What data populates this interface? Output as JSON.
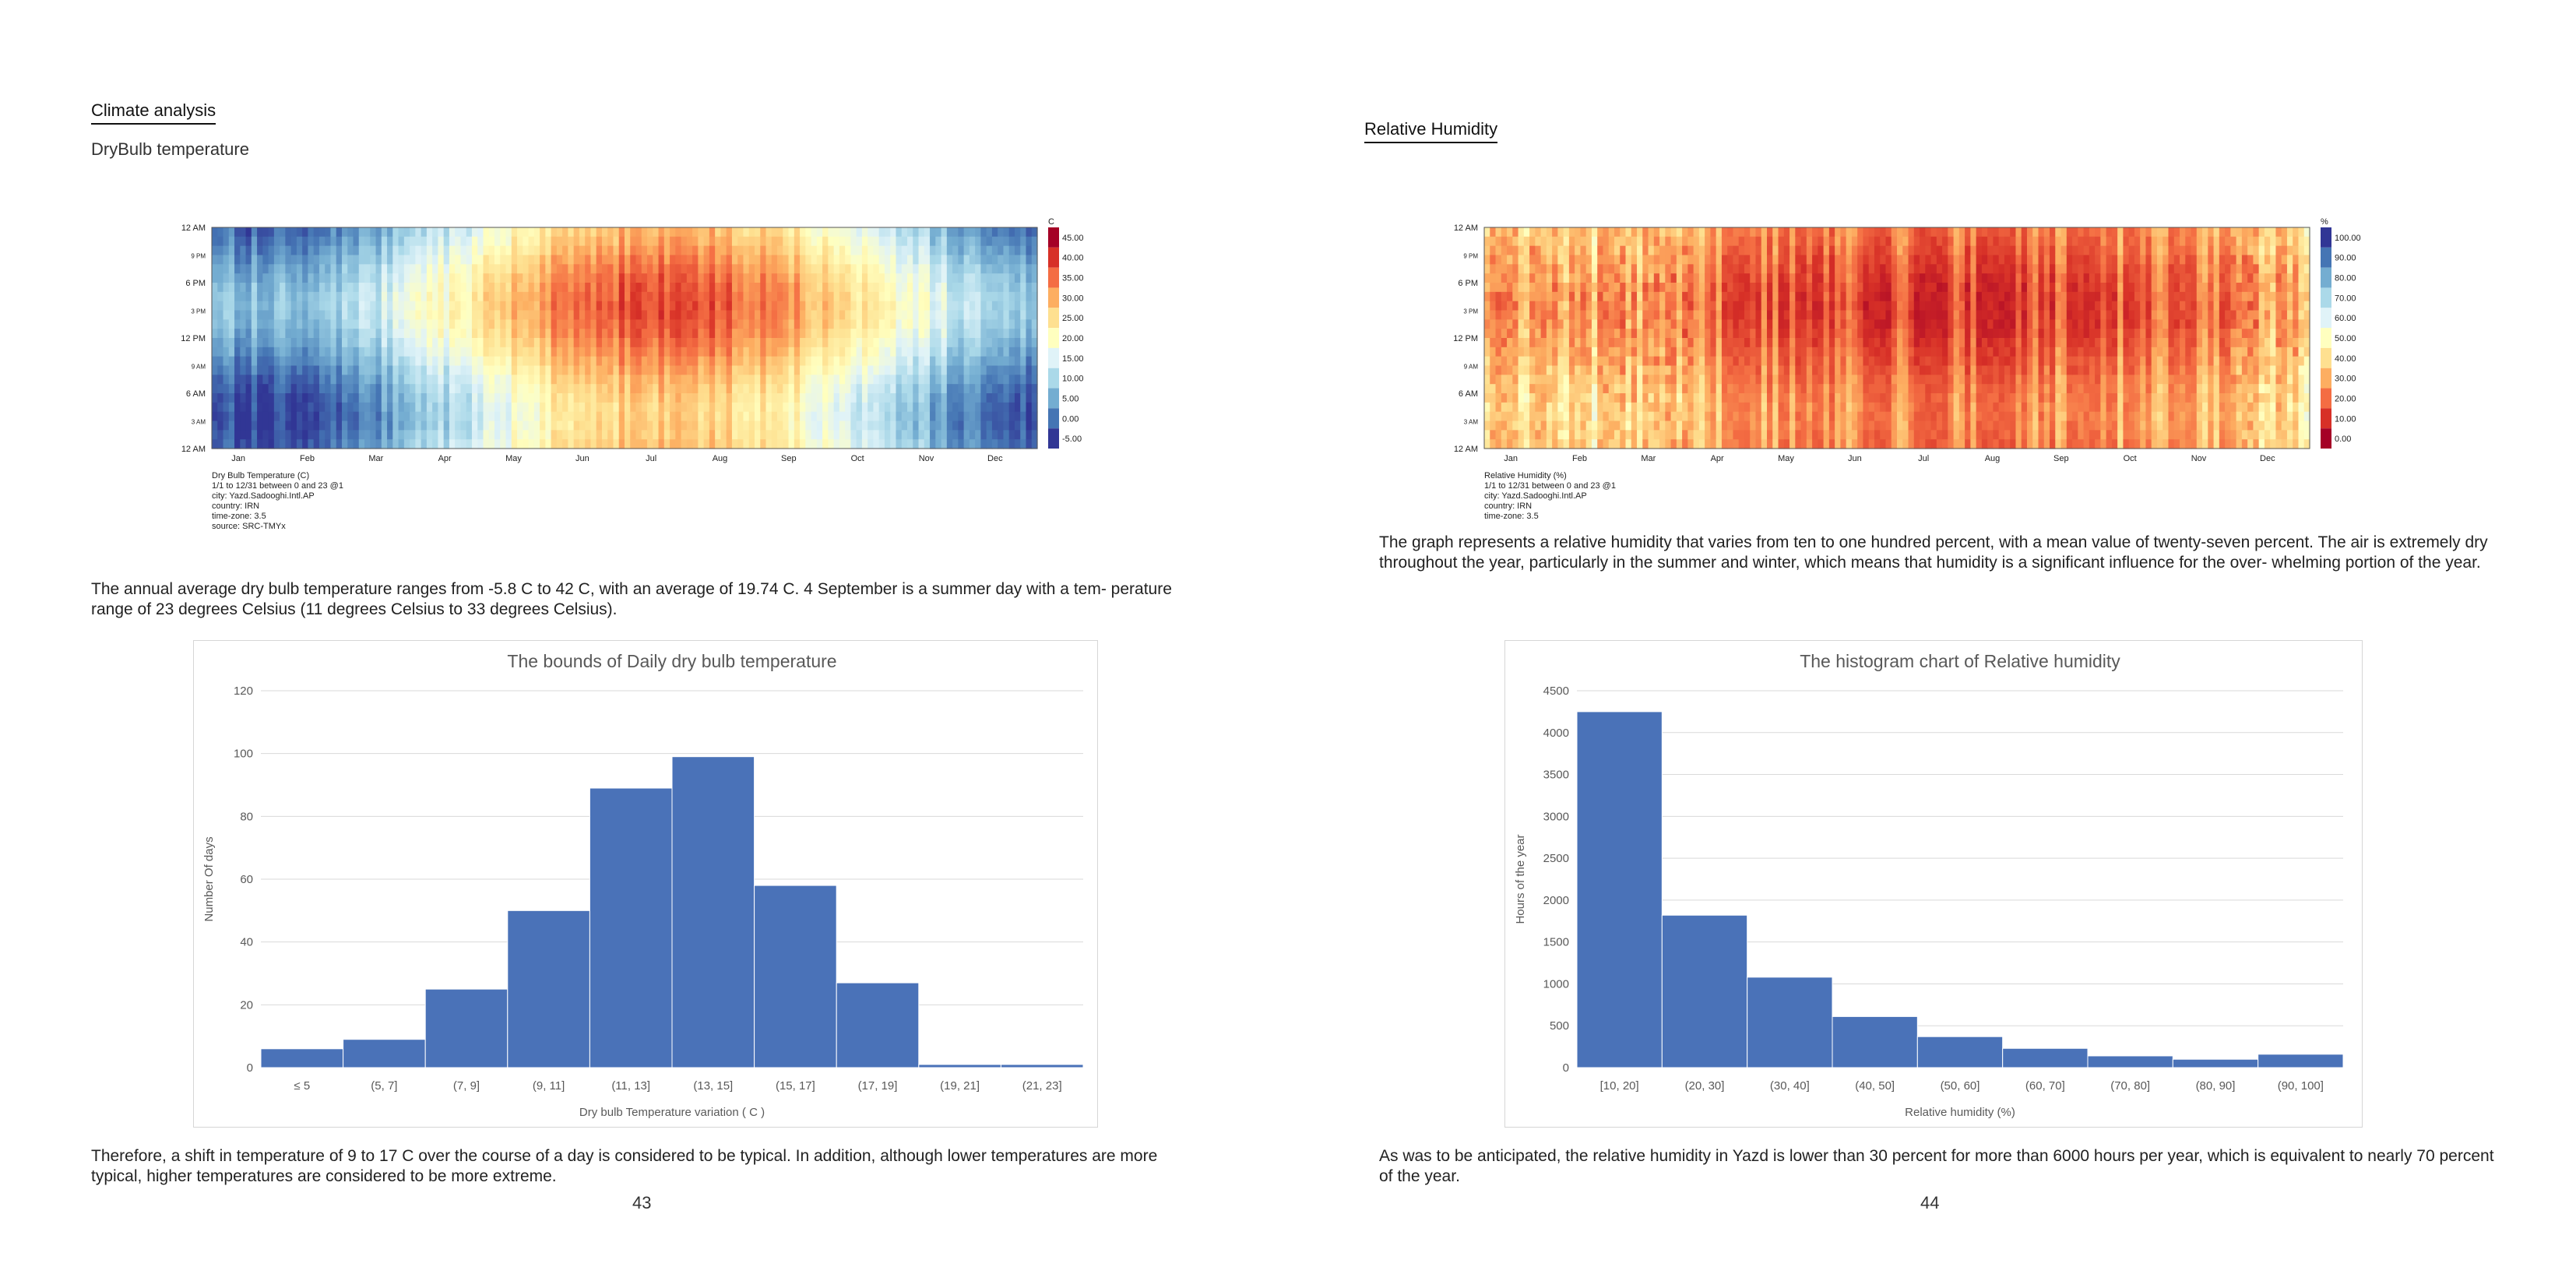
{
  "left_page": {
    "heading": "Climate analysis",
    "subheading": "DryBulb temperature",
    "paragraph1": "The annual average dry bulb temperature ranges from -5.8 C to 42 C, with an average of 19.74 C. 4 September is a summer day with a tem- perature range of 23 degrees Celsius (11 degrees Celsius to 33 degrees Celsius).",
    "paragraph2": "Therefore, a shift in temperature of 9 to 17 C over the course of a day is considered to be typical. In addition, although lower temperatures are more typical, higher temperatures are considered to be more extreme.",
    "page_number": "43"
  },
  "right_page": {
    "heading": "Relative Humidity",
    "paragraph1": "The graph represents a relative humidity that varies from ten to one hundred percent, with a mean value of twenty-seven percent. The air is extremely dry throughout the year, particularly in the summer and winter, which means that humidity is a significant influence for the over- whelming portion of the year.",
    "paragraph2": "As was to be anticipated, the relative humidity in Yazd is lower than 30 percent for more than 6000 hours per year, which is equivalent to nearly 70 percent of the year.",
    "page_number": "44"
  },
  "chart_data": [
    {
      "id": "drybulb-heatmap",
      "type": "heatmap",
      "y_ticks": [
        "12 AM",
        "9 PM",
        "6 PM",
        "3 PM",
        "12 PM",
        "9 AM",
        "6 AM",
        "3 AM",
        "12 AM"
      ],
      "x_ticks": [
        "Jan",
        "Feb",
        "Mar",
        "Apr",
        "May",
        "Jun",
        "Jul",
        "Aug",
        "Sep",
        "Oct",
        "Nov",
        "Dec"
      ],
      "legend_unit": "C",
      "legend_values": [
        "45.00",
        "40.00",
        "35.00",
        "30.00",
        "25.00",
        "20.00",
        "15.00",
        "10.00",
        "5.00",
        "0.00",
        "-5.00"
      ],
      "legend_colors": [
        "#a50026",
        "#d73027",
        "#f46d43",
        "#fdae61",
        "#fee090",
        "#ffffbf",
        "#e0f3f8",
        "#abd9e9",
        "#74add1",
        "#4575b4",
        "#313695"
      ],
      "caption": [
        "Dry Bulb Temperature (C)",
        "1/1 to 12/31 between 0 and 23 @1",
        "city: Yazd.Sadooghi.Intl.AP",
        "country: IRN",
        "time-zone: 3.5",
        "source: SRC-TMYx"
      ]
    },
    {
      "id": "humidity-heatmap",
      "type": "heatmap",
      "y_ticks": [
        "12 AM",
        "9 PM",
        "6 PM",
        "3 PM",
        "12 PM",
        "9 AM",
        "6 AM",
        "3 AM",
        "12 AM"
      ],
      "x_ticks": [
        "Jan",
        "Feb",
        "Mar",
        "Apr",
        "May",
        "Jun",
        "Jul",
        "Aug",
        "Sep",
        "Oct",
        "Nov",
        "Dec"
      ],
      "legend_unit": "%",
      "legend_values": [
        "100.00",
        "90.00",
        "80.00",
        "70.00",
        "60.00",
        "50.00",
        "40.00",
        "30.00",
        "20.00",
        "10.00",
        "0.00"
      ],
      "legend_colors": [
        "#313695",
        "#4575b4",
        "#74add1",
        "#abd9e9",
        "#e0f3f8",
        "#ffffbf",
        "#fee090",
        "#fdae61",
        "#f46d43",
        "#d73027",
        "#a50026"
      ],
      "caption": [
        "Relative Humidity (%)",
        "1/1 to 12/31 between 0 and 23 @1",
        "city: Yazd.Sadooghi.Intl.AP",
        "country: IRN",
        "time-zone: 3.5"
      ]
    },
    {
      "id": "drybulb-histogram",
      "type": "bar",
      "title": "The bounds of Daily dry bulb temperature",
      "xlabel": "Dry bulb Temperature variation ( C )",
      "ylabel": "Number Of days",
      "ylim": [
        0,
        120
      ],
      "yticks": [
        0,
        20,
        40,
        60,
        80,
        100,
        120
      ],
      "categories": [
        "≤ 5",
        "(5, 7]",
        "(7, 9]",
        "(9, 11]",
        "(11, 13]",
        "(13, 15]",
        "(15, 17]",
        "(17, 19]",
        "(19, 21]",
        "(21, 23]"
      ],
      "values": [
        6,
        9,
        25,
        50,
        89,
        99,
        58,
        27,
        1,
        1
      ],
      "bar_color": "#4a72b8"
    },
    {
      "id": "humidity-histogram",
      "type": "bar",
      "title": "The histogram chart of Relative humidity",
      "xlabel": "Relative humidity (%)",
      "ylabel": "Hours of the year",
      "ylim": [
        0,
        4500
      ],
      "yticks": [
        0,
        500,
        1000,
        1500,
        2000,
        2500,
        3000,
        3500,
        4000,
        4500
      ],
      "categories": [
        "[10, 20]",
        "(20, 30]",
        "(30, 40]",
        "(40, 50]",
        "(50, 60]",
        "(60, 70]",
        "(70, 80]",
        "(80, 90]",
        "(90, 100]"
      ],
      "values": [
        4250,
        1820,
        1080,
        610,
        370,
        230,
        140,
        100,
        160
      ],
      "bar_color": "#4a72b8"
    }
  ]
}
